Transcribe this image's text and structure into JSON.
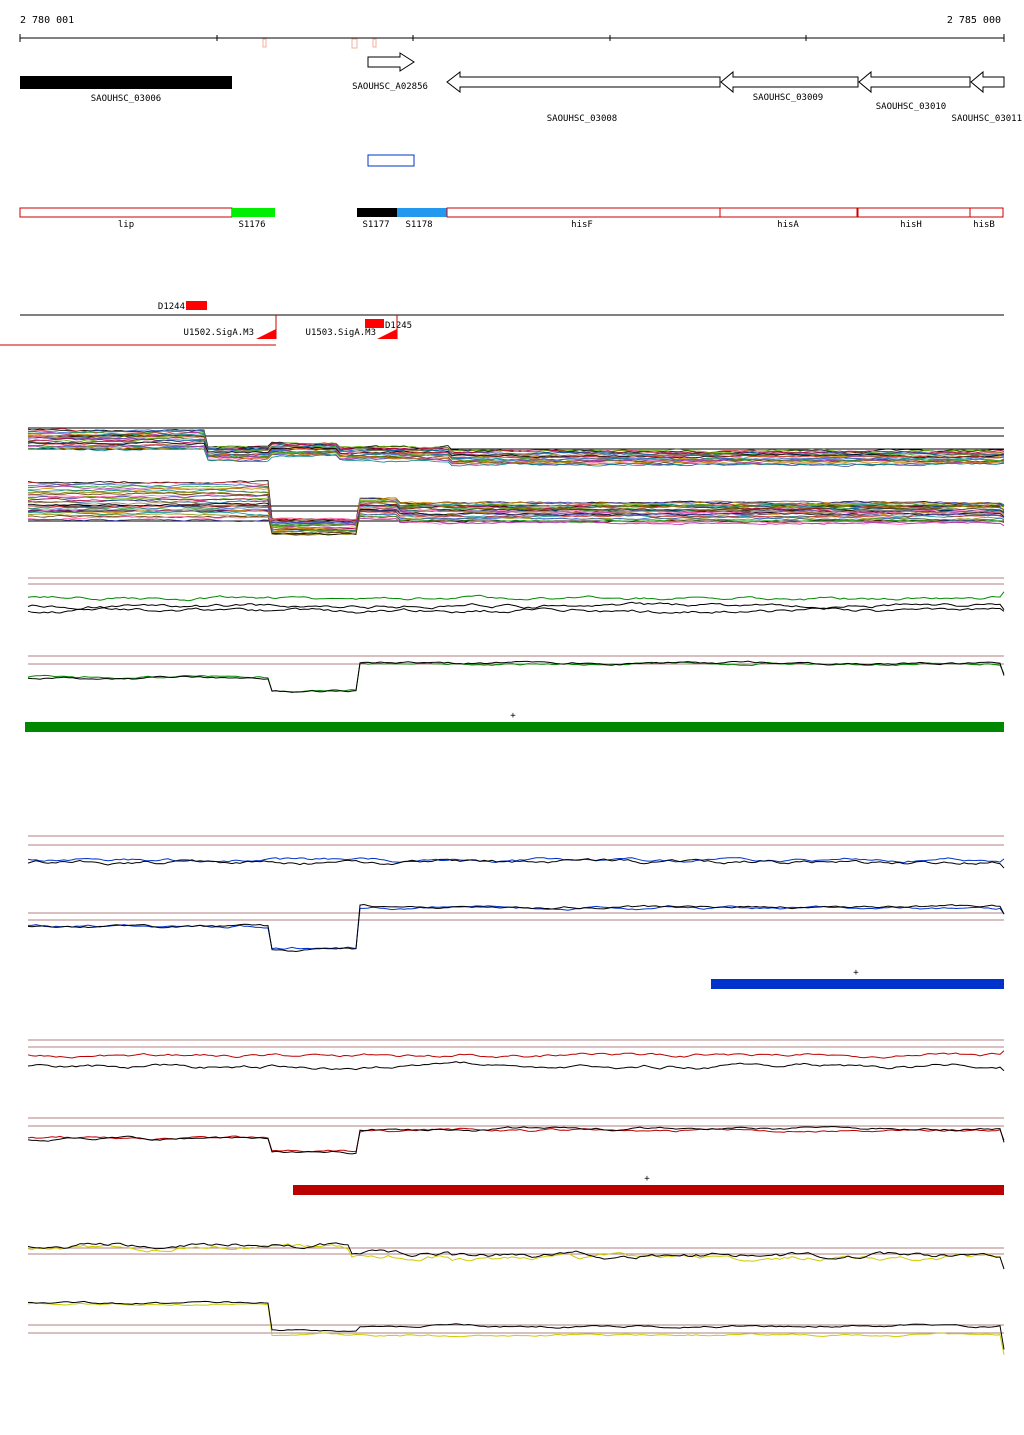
{
  "ruler": {
    "start_label": "2 780 001",
    "end_label": "2 785 000",
    "start_bp": 2780001,
    "end_bp": 2785000
  },
  "genes": [
    {
      "name": "SAOUHSC_03006",
      "style": "filled-bar"
    },
    {
      "name": "SAOUHSC_A02856",
      "style": "arrow-right"
    },
    {
      "name": "SAOUHSC_03008",
      "style": "arrow-left"
    },
    {
      "name": "SAOUHSC_03009",
      "style": "arrow-left"
    },
    {
      "name": "SAOUHSC_03010",
      "style": "arrow-left"
    },
    {
      "name": "SAOUHSC_03011",
      "style": "arrow-left"
    }
  ],
  "segments": [
    {
      "name": "lip",
      "color": "#ffffff"
    },
    {
      "name": "S1176",
      "color": "#00ee00"
    },
    {
      "name": "S1177",
      "color": "#000000"
    },
    {
      "name": "S1178",
      "color": "#2299ee"
    },
    {
      "name": "hisF",
      "color": "#ffffff"
    },
    {
      "name": "hisA",
      "color": "#ffffff"
    },
    {
      "name": "hisH",
      "color": "#ffffff"
    },
    {
      "name": "hisB",
      "color": "#ffffff"
    }
  ],
  "features": [
    {
      "name": "D1244"
    },
    {
      "name": "D1245"
    },
    {
      "name": "U1502.SigA.M3"
    },
    {
      "name": "U1503.SigA.M3"
    }
  ],
  "bars": [
    {
      "color": "#008800",
      "marker": "+"
    },
    {
      "color": "#0033cc",
      "marker": "+"
    },
    {
      "color": "#bb0000",
      "marker": "+"
    }
  ],
  "colors": {
    "segment_border": "#cc0000",
    "condition_green": "#008800",
    "condition_blue": "#0033cc",
    "condition_red": "#bb0000",
    "condition_yellow": "#cccc00"
  }
}
